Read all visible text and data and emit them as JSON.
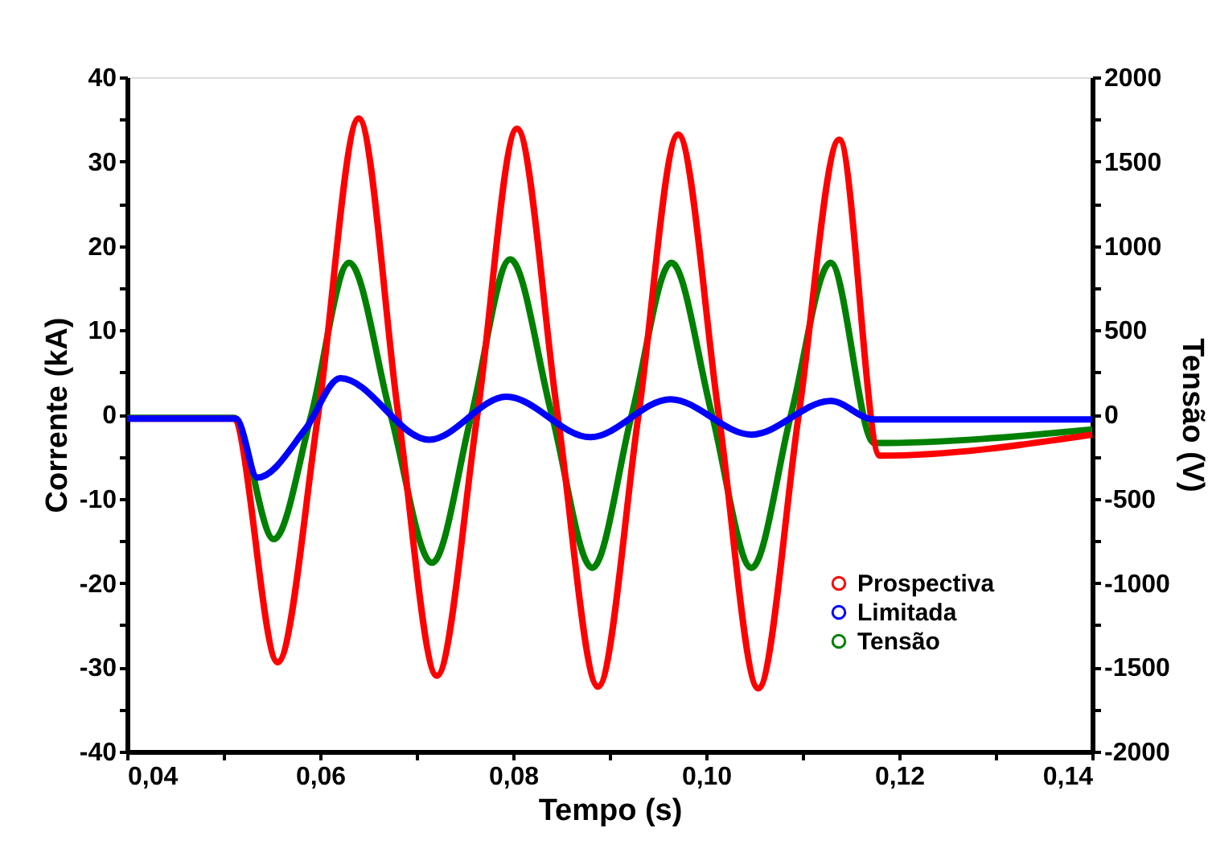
{
  "chart_data": {
    "type": "line",
    "xlabel": "Tempo (s)",
    "ylabel": "Corrente (kA)",
    "y2label": "Tensão (V)",
    "xlim": [
      0.04,
      0.14
    ],
    "ylim": [
      -40,
      40
    ],
    "y2lim": [
      -2000,
      2000
    ],
    "xticks": [
      {
        "value": 0.04,
        "label": "0,04"
      },
      {
        "value": 0.05,
        "label": null
      },
      {
        "value": 0.06,
        "label": "0,06"
      },
      {
        "value": 0.07,
        "label": null
      },
      {
        "value": 0.08,
        "label": "0,08"
      },
      {
        "value": 0.09,
        "label": null
      },
      {
        "value": 0.1,
        "label": "0,10"
      },
      {
        "value": 0.11,
        "label": null
      },
      {
        "value": 0.12,
        "label": "0,12"
      },
      {
        "value": 0.13,
        "label": null
      },
      {
        "value": 0.14,
        "label": "0,14"
      }
    ],
    "yticks": [
      -40,
      {
        "value": -35,
        "label": null
      },
      -30,
      {
        "value": -25,
        "label": null
      },
      -20,
      {
        "value": -15,
        "label": null
      },
      -10,
      {
        "value": -5,
        "label": null
      },
      0,
      {
        "value": 5,
        "label": null
      },
      10,
      {
        "value": 15,
        "label": null
      },
      20,
      {
        "value": 25,
        "label": null
      },
      30,
      {
        "value": 35,
        "label": null
      },
      40
    ],
    "y2ticks": [
      -2000,
      {
        "value": -1750,
        "label": null
      },
      -1500,
      {
        "value": -1250,
        "label": null
      },
      -1000,
      {
        "value": -750,
        "label": null
      },
      -500,
      {
        "value": -250,
        "label": null
      },
      0,
      {
        "value": 250,
        "label": null
      },
      500,
      {
        "value": 750,
        "label": null
      },
      1000,
      {
        "value": 1250,
        "label": null
      },
      1500,
      {
        "value": 1750,
        "label": null
      },
      2000
    ],
    "grid": false,
    "legend": "bottom right",
    "line_style": "solid",
    "series": [
      {
        "name": "Prospectiva",
        "color": "#ff0000",
        "x": [
          0.04,
          0.051,
          0.0556,
          0.0598,
          0.064,
          0.0681,
          0.0721,
          0.0763,
          0.0804,
          0.0846,
          0.0888,
          0.093,
          0.0971,
          0.1013,
          0.1054,
          0.1096,
          0.1138,
          0.118,
          0.14
        ],
        "values": [
          -0.5,
          -0.5,
          -29.4,
          0,
          35.1,
          0,
          -31,
          0,
          33.9,
          0,
          -32.3,
          0,
          33.2,
          0,
          -32.5,
          0,
          32.6,
          -4.9,
          -2.4
        ]
      },
      {
        "name": "Limitada",
        "color": "#0000ff",
        "x": [
          0.04,
          0.0513,
          0.0535,
          0.0585,
          0.0621,
          0.0713,
          0.0793,
          0.088,
          0.0963,
          0.1047,
          0.1129,
          0.1174,
          0.14
        ],
        "values": [
          -0.5,
          -0.5,
          -7.5,
          -1.7,
          4.3,
          -3.0,
          2.1,
          -2.7,
          1.8,
          -2.4,
          1.6,
          -0.6,
          -0.6
        ]
      },
      {
        "name": "Tensão",
        "color": "#008000",
        "axis": "y2",
        "x": [
          0.04,
          0.0511,
          0.0552,
          0.0591,
          0.063,
          0.0673,
          0.0716,
          0.0757,
          0.0797,
          0.084,
          0.0882,
          0.0923,
          0.0964,
          0.1006,
          0.1047,
          0.1088,
          0.1129,
          0.1174,
          0.14
        ],
        "values": [
          -20,
          -20,
          -740,
          0,
          900,
          0,
          -880,
          0,
          920,
          0,
          -910,
          0,
          900,
          0,
          -910,
          0,
          900,
          -170,
          -90
        ]
      }
    ]
  }
}
